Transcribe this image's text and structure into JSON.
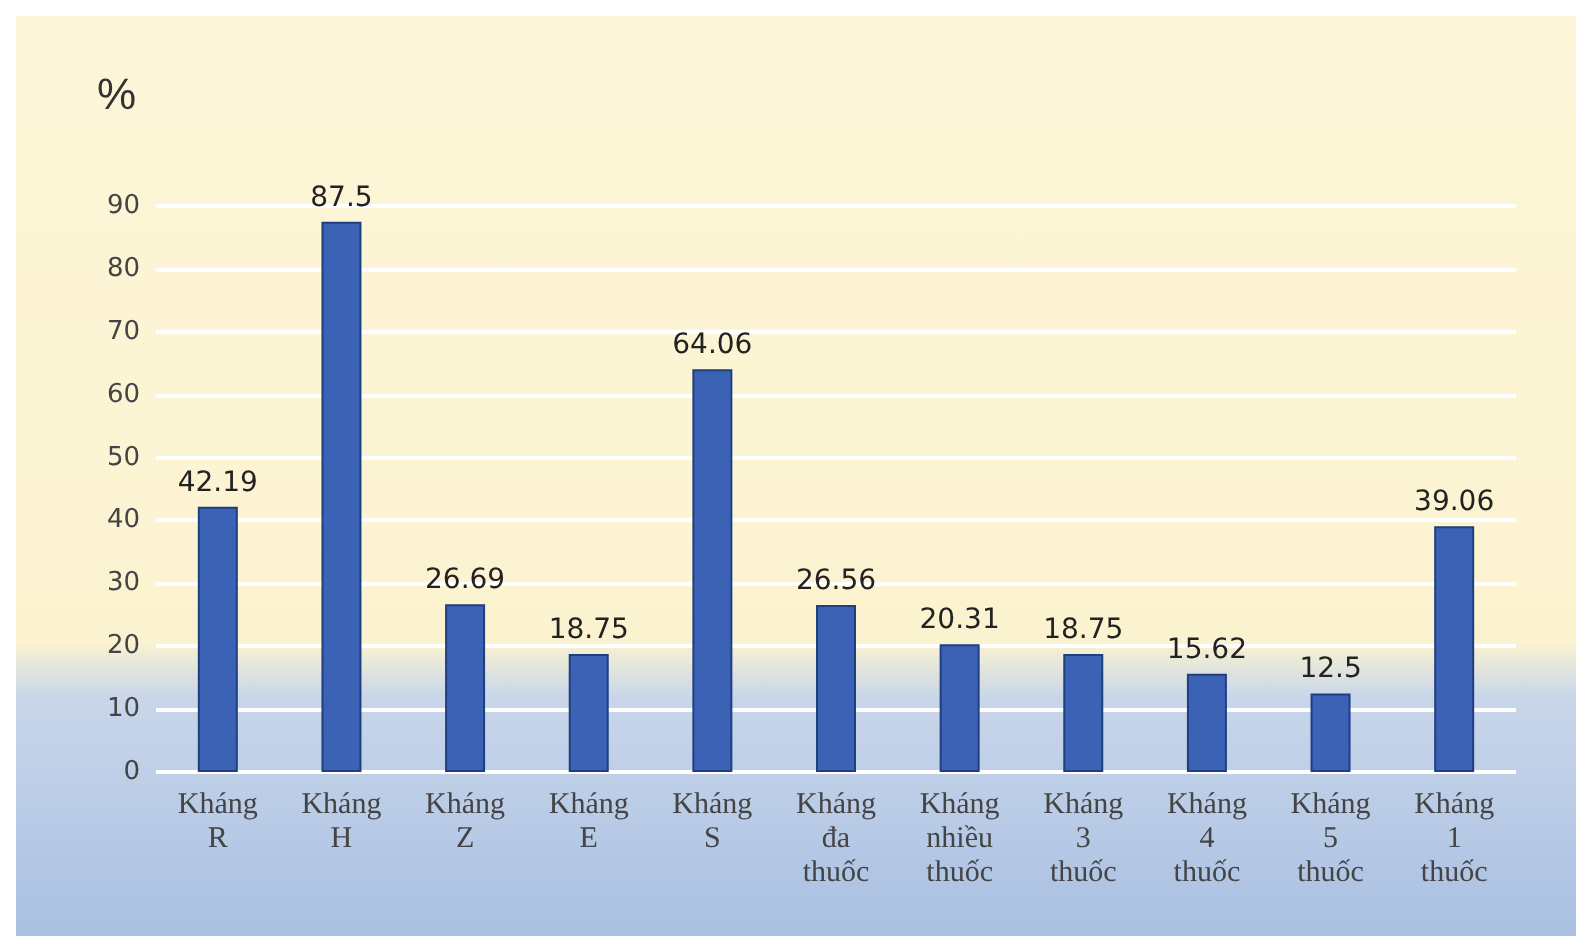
{
  "chart_data": {
    "type": "bar",
    "ylabel": "%",
    "categories": [
      "Kháng R",
      "Kháng H",
      "Kháng Z",
      "Kháng E",
      "Kháng S",
      "Kháng đa thuốc",
      "Kháng nhiều thuốc",
      "Kháng 3 thuốc",
      "Kháng 4 thuốc",
      "Kháng 5 thuốc",
      "Kháng 1 thuốc"
    ],
    "values": [
      42.19,
      87.5,
      26.69,
      18.75,
      64.06,
      26.56,
      20.31,
      18.75,
      15.62,
      12.5,
      39.06
    ],
    "color": "#3b62b5",
    "ylim": [
      0,
      90
    ],
    "yticks": [
      0,
      10,
      20,
      30,
      40,
      50,
      60,
      70,
      80,
      90
    ],
    "grid": true,
    "data_labels": true
  }
}
